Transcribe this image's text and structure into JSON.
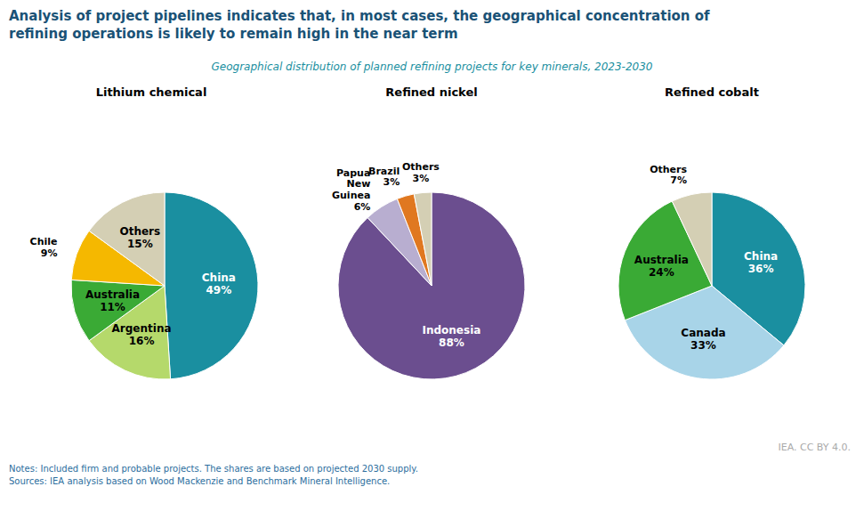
{
  "title": [
    "Analysis of project pipelines indicates that, in most cases, the geographical concentration of",
    "refining operations is likely to remain high in the near term"
  ],
  "subtitle": "Geographical distribution of planned refining projects for key minerals, 2023-2030",
  "notes": [
    "Notes: Included firm and probable projects. The shares are based on projected 2030 supply.",
    "Sources: IEA analysis based on Wood Mackenzie and Benchmark Mineral Intelligence."
  ],
  "credit": "IEA. CC BY 4.0.",
  "chart_data": [
    {
      "type": "pie",
      "title": "Lithium chemical",
      "categories": [
        "China",
        "Argentina",
        "Australia",
        "Chile",
        "Others"
      ],
      "values": [
        49,
        16,
        11,
        9,
        15
      ],
      "value_labels": [
        "49%",
        "16%",
        "11%",
        "9%",
        "15%"
      ],
      "colors": [
        "#1a8fa0",
        "#b5d96b",
        "#3aaa35",
        "#f5b800",
        "#d4cfb4"
      ],
      "data_labels": true
    },
    {
      "type": "pie",
      "title": "Refined nickel",
      "categories": [
        "Indonesia",
        "Papua\nNew\nGuinea",
        "Brazil",
        "Others"
      ],
      "values": [
        88,
        6,
        3,
        3
      ],
      "value_labels": [
        "88%",
        "6%",
        "3%",
        "3%"
      ],
      "colors": [
        "#6b4e8f",
        "#b8aed0",
        "#e07820",
        "#d4cfb4"
      ],
      "data_labels": true
    },
    {
      "type": "pie",
      "title": "Refined cobalt",
      "categories": [
        "China",
        "Canada",
        "Australia",
        "Others"
      ],
      "values": [
        36,
        33,
        24,
        7
      ],
      "value_labels": [
        "36%",
        "33%",
        "24%",
        "7%"
      ],
      "colors": [
        "#1a8fa0",
        "#a8d4e8",
        "#3aaa35",
        "#d4cfb4"
      ],
      "data_labels": true
    }
  ]
}
